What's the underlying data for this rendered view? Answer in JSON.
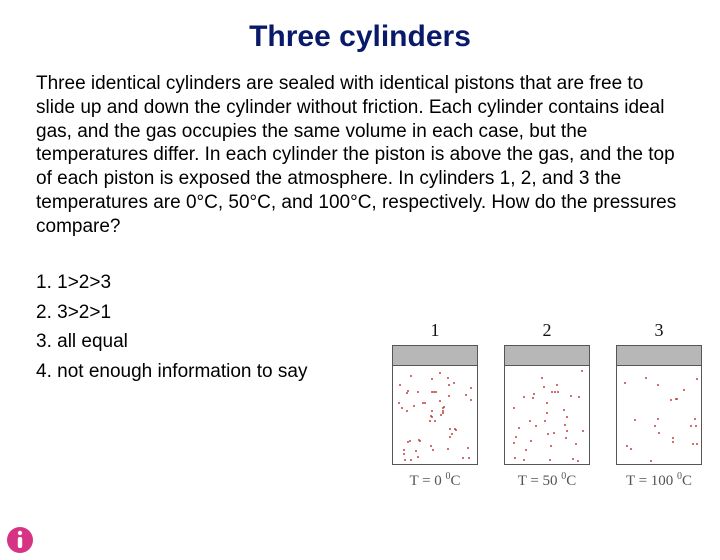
{
  "title": "Three cylinders",
  "body": "Three identical cylinders are sealed with identical pistons that are free to slide up and down the cylinder without friction. Each cylinder contains ideal gas, and the gas occupies the same volume in each case, but the temperatures differ. In each cylinder the piston is above the gas, and the top of each piston is exposed the atmosphere. In cylinders 1, 2, and 3 the temperatures are 0°C, 50°C, and 100°C, respectively.  How do the pressures compare?",
  "options": [
    "1. 1>2>3",
    "2. 3>2>1",
    "3. all equal",
    "4. not enough information to say"
  ],
  "cylinders": [
    {
      "label": "1",
      "temp_value": 0,
      "dot_count": 55
    },
    {
      "label": "2",
      "temp_value": 50,
      "dot_count": 38
    },
    {
      "label": "3",
      "temp_value": 100,
      "dot_count": 22
    }
  ],
  "colors": {
    "title": "#0a1a6b",
    "piston": "#b7b7b7",
    "dot": "#c24444",
    "temp_text": "#555555"
  },
  "logo": {
    "bg": "#d63384",
    "letter": "i"
  }
}
